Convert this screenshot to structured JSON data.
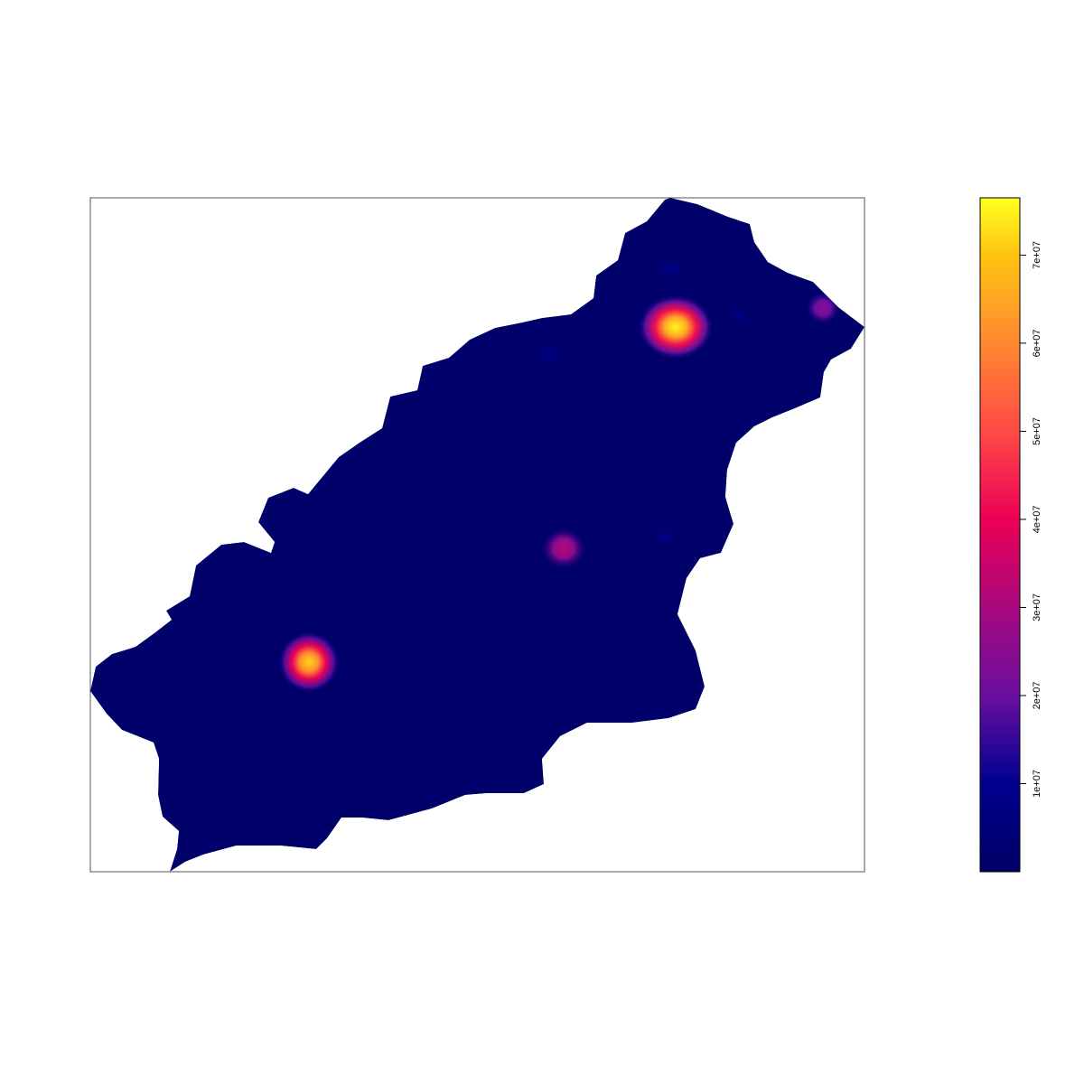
{
  "chart_data": {
    "type": "heatmap",
    "title": "",
    "xlabel": "",
    "ylabel": "",
    "grid": false,
    "legend_position": "right",
    "colorbar": {
      "range": [
        0,
        76500000
      ],
      "ticks": [
        {
          "value": 10000000,
          "label": "1e+07"
        },
        {
          "value": 20000000,
          "label": "2e+07"
        },
        {
          "value": 30000000,
          "label": "3e+07"
        },
        {
          "value": 40000000,
          "label": "4e+07"
        },
        {
          "value": 50000000,
          "label": "5e+07"
        },
        {
          "value": 60000000,
          "label": "6e+07"
        },
        {
          "value": 70000000,
          "label": "7e+07"
        }
      ],
      "stops": [
        {
          "value": 0,
          "color": "#000066"
        },
        {
          "value": 10000000,
          "color": "#00008F"
        },
        {
          "value": 20000000,
          "color": "#6A0FA0"
        },
        {
          "value": 30000000,
          "color": "#A8087E"
        },
        {
          "value": 40000000,
          "color": "#EC0055"
        },
        {
          "value": 50000000,
          "color": "#FF4A46"
        },
        {
          "value": 60000000,
          "color": "#FF8830"
        },
        {
          "value": 70000000,
          "color": "#FFC412"
        },
        {
          "value": 76500000,
          "color": "#FFFF1E"
        }
      ]
    },
    "background_value": 1000000,
    "hotspots": [
      {
        "name": "hotspot-northeast",
        "peak": 76000000
      },
      {
        "name": "hotspot-southwest",
        "peak": 72000000
      },
      {
        "name": "hotspot-center",
        "peak": 32000000
      },
      {
        "name": "hotspot-far-east",
        "peak": 25000000
      },
      {
        "name": "hotspot-north",
        "peak": 9000000
      }
    ]
  }
}
